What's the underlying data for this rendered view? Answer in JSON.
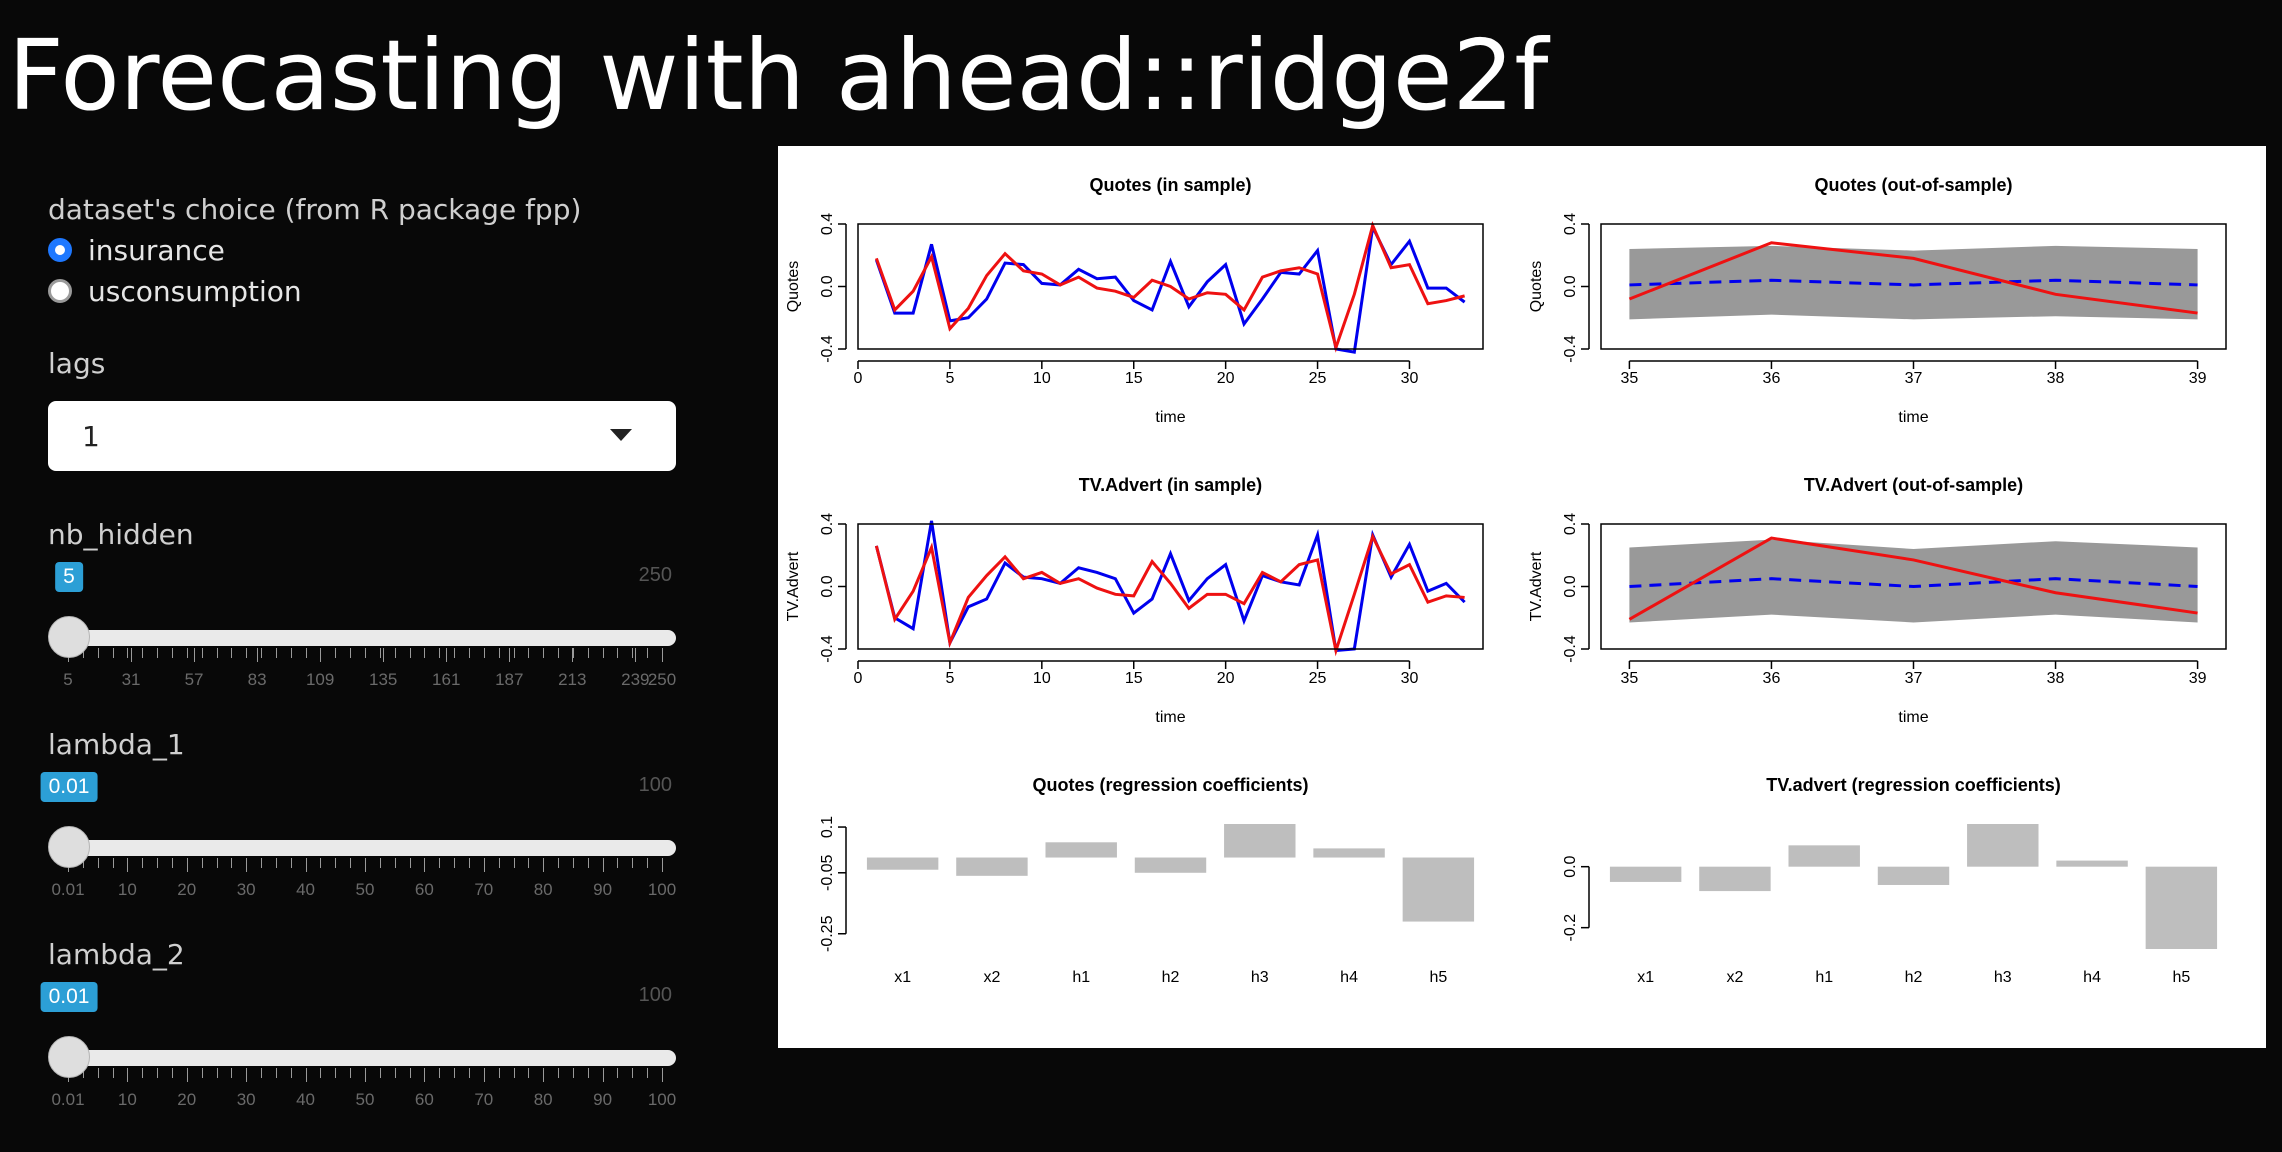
{
  "page": {
    "title": "Forecasting with ahead::ridge2f"
  },
  "sidebar": {
    "dataset": {
      "label": "dataset's choice (from R package fpp)",
      "options": [
        {
          "label": "insurance",
          "selected": true
        },
        {
          "label": "usconsumption",
          "selected": false
        }
      ]
    },
    "lags": {
      "label": "lags",
      "selected": "1"
    },
    "nb_hidden": {
      "label": "nb_hidden",
      "value": "5",
      "value_num": 5,
      "min": 5,
      "max": 250,
      "max_label": "250",
      "ticks": [
        "5",
        "31",
        "57",
        "83",
        "109",
        "135",
        "161",
        "187",
        "213",
        "239",
        "250"
      ],
      "tick_values": [
        5,
        31,
        57,
        83,
        109,
        135,
        161,
        187,
        213,
        239,
        250
      ]
    },
    "lambda_1": {
      "label": "lambda_1",
      "value": "0.01",
      "value_num": 0.01,
      "min": 0.01,
      "max": 100,
      "max_label": "100",
      "ticks": [
        "0.01",
        "10",
        "20",
        "30",
        "40",
        "50",
        "60",
        "70",
        "80",
        "90",
        "100"
      ],
      "tick_values": [
        0.01,
        10,
        20,
        30,
        40,
        50,
        60,
        70,
        80,
        90,
        100
      ]
    },
    "lambda_2": {
      "label": "lambda_2",
      "value": "0.01",
      "value_num": 0.01,
      "min": 0.01,
      "max": 100,
      "max_label": "100",
      "ticks": [
        "0.01",
        "10",
        "20",
        "30",
        "40",
        "50",
        "60",
        "70",
        "80",
        "90",
        "100"
      ],
      "tick_values": [
        0.01,
        10,
        20,
        30,
        40,
        50,
        60,
        70,
        80,
        90,
        100
      ]
    }
  },
  "colors": {
    "actual": "#0000ee",
    "fitted": "#ee1111",
    "forecast_band": "#999999",
    "bars": "#bebebe",
    "accent": "#2c9fd6",
    "radio": "#1e78ff"
  },
  "chart_data": [
    {
      "type": "line",
      "title": "Quotes (in sample)",
      "xlabel": "time",
      "ylabel": "Quotes",
      "xlim": [
        0,
        34
      ],
      "ylim": [
        -0.4,
        0.4
      ],
      "xticks": [
        0,
        5,
        10,
        15,
        20,
        25,
        30
      ],
      "yticks": [
        -0.4,
        0.0,
        0.4
      ],
      "series": [
        {
          "color": "#0000ee",
          "x": [
            1,
            2,
            3,
            4,
            5,
            6,
            7,
            8,
            9,
            10,
            11,
            12,
            13,
            14,
            15,
            16,
            17,
            18,
            19,
            20,
            21,
            22,
            23,
            24,
            25,
            26,
            27,
            28,
            29,
            30,
            31,
            32,
            33
          ],
          "y": [
            0.17,
            -0.17,
            -0.17,
            0.27,
            -0.22,
            -0.2,
            -0.08,
            0.15,
            0.14,
            0.02,
            0.01,
            0.11,
            0.05,
            0.06,
            -0.09,
            -0.15,
            0.16,
            -0.13,
            0.03,
            0.14,
            -0.24,
            -0.08,
            0.09,
            0.08,
            0.23,
            -0.4,
            -0.42,
            0.38,
            0.14,
            0.29,
            -0.01,
            -0.01,
            -0.1
          ]
        },
        {
          "color": "#ee1111",
          "x": [
            1,
            2,
            3,
            4,
            5,
            6,
            7,
            8,
            9,
            10,
            11,
            12,
            13,
            14,
            15,
            16,
            17,
            18,
            19,
            20,
            21,
            22,
            23,
            24,
            25,
            26,
            27,
            28,
            29,
            30,
            31,
            32,
            33
          ],
          "y": [
            0.18,
            -0.15,
            -0.03,
            0.19,
            -0.27,
            -0.14,
            0.07,
            0.21,
            0.1,
            0.08,
            0.01,
            0.06,
            -0.01,
            -0.03,
            -0.07,
            0.04,
            -0.0,
            -0.08,
            -0.04,
            -0.05,
            -0.15,
            0.06,
            0.1,
            0.12,
            0.08,
            -0.39,
            -0.05,
            0.39,
            0.12,
            0.14,
            -0.11,
            -0.09,
            -0.06
          ]
        }
      ]
    },
    {
      "type": "line",
      "title": "Quotes (out-of-sample)",
      "xlabel": "time",
      "ylabel": "Quotes",
      "xlim": [
        34.8,
        39.2
      ],
      "ylim": [
        -0.4,
        0.4
      ],
      "xticks": [
        35,
        36,
        37,
        38,
        39
      ],
      "yticks": [
        -0.4,
        0.0,
        0.4
      ],
      "band": {
        "x": [
          35,
          36,
          37,
          38,
          39
        ],
        "lower": [
          -0.21,
          -0.18,
          -0.21,
          -0.19,
          -0.21
        ],
        "upper": [
          0.24,
          0.26,
          0.23,
          0.26,
          0.24
        ]
      },
      "series": [
        {
          "color": "#0000ee",
          "dashed": true,
          "x": [
            35,
            36,
            37,
            38,
            39
          ],
          "y": [
            0.01,
            0.04,
            0.01,
            0.04,
            0.01
          ]
        },
        {
          "color": "#ee1111",
          "x": [
            35,
            36,
            37,
            38,
            39
          ],
          "y": [
            -0.08,
            0.28,
            0.18,
            -0.05,
            -0.17
          ]
        }
      ]
    },
    {
      "type": "line",
      "title": "TV.Advert (in sample)",
      "xlabel": "time",
      "ylabel": "TV.Advert",
      "xlim": [
        0,
        34
      ],
      "ylim": [
        -0.4,
        0.4
      ],
      "xticks": [
        0,
        5,
        10,
        15,
        20,
        25,
        30
      ],
      "yticks": [
        -0.4,
        0.0,
        0.4
      ],
      "series": [
        {
          "color": "#0000ee",
          "x": [
            1,
            2,
            3,
            4,
            5,
            6,
            7,
            8,
            9,
            10,
            11,
            12,
            13,
            14,
            15,
            16,
            17,
            18,
            19,
            20,
            21,
            22,
            23,
            24,
            25,
            26,
            27,
            28,
            29,
            30,
            31,
            32,
            33
          ],
          "y": [
            0.26,
            -0.2,
            -0.27,
            0.42,
            -0.36,
            -0.13,
            -0.08,
            0.15,
            0.06,
            0.05,
            0.02,
            0.12,
            0.09,
            0.05,
            -0.17,
            -0.08,
            0.21,
            -0.09,
            0.05,
            0.14,
            -0.22,
            0.07,
            0.03,
            0.01,
            0.33,
            -0.41,
            -0.4,
            0.33,
            0.06,
            0.27,
            -0.03,
            0.02,
            -0.1
          ]
        },
        {
          "color": "#ee1111",
          "x": [
            1,
            2,
            3,
            4,
            5,
            6,
            7,
            8,
            9,
            10,
            11,
            12,
            13,
            14,
            15,
            16,
            17,
            18,
            19,
            20,
            21,
            22,
            23,
            24,
            25,
            26,
            27,
            28,
            29,
            30,
            31,
            32,
            33
          ],
          "y": [
            0.26,
            -0.21,
            -0.03,
            0.25,
            -0.36,
            -0.07,
            0.07,
            0.19,
            0.05,
            0.09,
            0.02,
            0.05,
            -0.01,
            -0.05,
            -0.06,
            0.16,
            0.02,
            -0.14,
            -0.05,
            -0.05,
            -0.11,
            0.09,
            0.03,
            0.14,
            0.17,
            -0.41,
            -0.05,
            0.32,
            0.08,
            0.14,
            -0.1,
            -0.06,
            -0.07
          ]
        }
      ]
    },
    {
      "type": "line",
      "title": "TV.Advert (out-of-sample)",
      "xlabel": "time",
      "ylabel": "TV.Advert",
      "xlim": [
        34.8,
        39.2
      ],
      "ylim": [
        -0.4,
        0.4
      ],
      "xticks": [
        35,
        36,
        37,
        38,
        39
      ],
      "yticks": [
        -0.4,
        0.0,
        0.4
      ],
      "band": {
        "x": [
          35,
          36,
          37,
          38,
          39
        ],
        "lower": [
          -0.23,
          -0.18,
          -0.23,
          -0.18,
          -0.23
        ],
        "upper": [
          0.25,
          0.3,
          0.24,
          0.29,
          0.25
        ]
      },
      "series": [
        {
          "color": "#0000ee",
          "dashed": true,
          "x": [
            35,
            36,
            37,
            38,
            39
          ],
          "y": [
            0.0,
            0.05,
            0.0,
            0.05,
            0.0
          ]
        },
        {
          "color": "#ee1111",
          "x": [
            35,
            36,
            37,
            38,
            39
          ],
          "y": [
            -0.21,
            0.31,
            0.17,
            -0.04,
            -0.17
          ]
        }
      ]
    },
    {
      "type": "bar",
      "title": "Quotes (regression coefficients)",
      "xlabel": "",
      "ylabel": "",
      "categories": [
        "x1",
        "x2",
        "h1",
        "h2",
        "h3",
        "h4",
        "h5"
      ],
      "values": [
        -0.04,
        -0.06,
        0.05,
        -0.05,
        0.11,
        0.03,
        -0.21
      ],
      "ylim": [
        -0.3,
        0.11
      ],
      "yticks": [
        -0.25,
        -0.05,
        0.1
      ]
    },
    {
      "type": "bar",
      "title": "TV.advert  (regression coefficients)",
      "xlabel": "",
      "ylabel": "",
      "categories": [
        "x1",
        "x2",
        "h1",
        "h2",
        "h3",
        "h4",
        "h5"
      ],
      "values": [
        -0.05,
        -0.08,
        0.07,
        -0.06,
        0.14,
        0.02,
        -0.27
      ],
      "ylim": [
        -0.27,
        0.14
      ],
      "yticks": [
        -0.2,
        0.0
      ]
    }
  ]
}
